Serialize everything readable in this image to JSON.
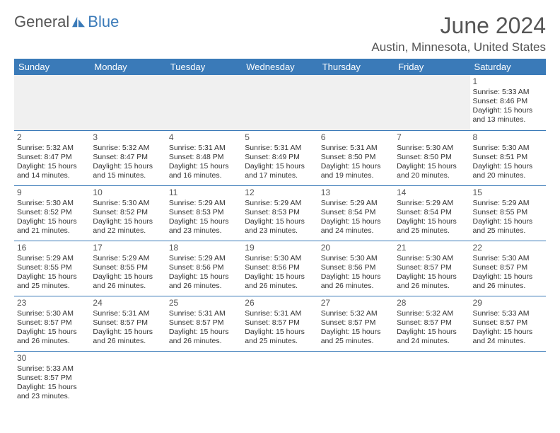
{
  "logo": {
    "text1": "General",
    "text2": "Blue",
    "icon_color": "#3a7ab8"
  },
  "title": {
    "month_year": "June 2024",
    "location": "Austin, Minnesota, United States"
  },
  "colors": {
    "header_bg": "#3a7ab8",
    "header_fg": "#ffffff",
    "rule": "#3a7ab8",
    "text": "#333333",
    "muted": "#555555",
    "empty_bg": "#f0f0f0"
  },
  "day_headers": [
    "Sunday",
    "Monday",
    "Tuesday",
    "Wednesday",
    "Thursday",
    "Friday",
    "Saturday"
  ],
  "weeks": [
    [
      null,
      null,
      null,
      null,
      null,
      null,
      {
        "n": "1",
        "sunrise": "5:33 AM",
        "sunset": "8:46 PM",
        "dl_h": "15",
        "dl_m": "13"
      }
    ],
    [
      {
        "n": "2",
        "sunrise": "5:32 AM",
        "sunset": "8:47 PM",
        "dl_h": "15",
        "dl_m": "14"
      },
      {
        "n": "3",
        "sunrise": "5:32 AM",
        "sunset": "8:47 PM",
        "dl_h": "15",
        "dl_m": "15"
      },
      {
        "n": "4",
        "sunrise": "5:31 AM",
        "sunset": "8:48 PM",
        "dl_h": "15",
        "dl_m": "16"
      },
      {
        "n": "5",
        "sunrise": "5:31 AM",
        "sunset": "8:49 PM",
        "dl_h": "15",
        "dl_m": "17"
      },
      {
        "n": "6",
        "sunrise": "5:31 AM",
        "sunset": "8:50 PM",
        "dl_h": "15",
        "dl_m": "19"
      },
      {
        "n": "7",
        "sunrise": "5:30 AM",
        "sunset": "8:50 PM",
        "dl_h": "15",
        "dl_m": "20"
      },
      {
        "n": "8",
        "sunrise": "5:30 AM",
        "sunset": "8:51 PM",
        "dl_h": "15",
        "dl_m": "20"
      }
    ],
    [
      {
        "n": "9",
        "sunrise": "5:30 AM",
        "sunset": "8:52 PM",
        "dl_h": "15",
        "dl_m": "21"
      },
      {
        "n": "10",
        "sunrise": "5:30 AM",
        "sunset": "8:52 PM",
        "dl_h": "15",
        "dl_m": "22"
      },
      {
        "n": "11",
        "sunrise": "5:29 AM",
        "sunset": "8:53 PM",
        "dl_h": "15",
        "dl_m": "23"
      },
      {
        "n": "12",
        "sunrise": "5:29 AM",
        "sunset": "8:53 PM",
        "dl_h": "15",
        "dl_m": "23"
      },
      {
        "n": "13",
        "sunrise": "5:29 AM",
        "sunset": "8:54 PM",
        "dl_h": "15",
        "dl_m": "24"
      },
      {
        "n": "14",
        "sunrise": "5:29 AM",
        "sunset": "8:54 PM",
        "dl_h": "15",
        "dl_m": "25"
      },
      {
        "n": "15",
        "sunrise": "5:29 AM",
        "sunset": "8:55 PM",
        "dl_h": "15",
        "dl_m": "25"
      }
    ],
    [
      {
        "n": "16",
        "sunrise": "5:29 AM",
        "sunset": "8:55 PM",
        "dl_h": "15",
        "dl_m": "25"
      },
      {
        "n": "17",
        "sunrise": "5:29 AM",
        "sunset": "8:55 PM",
        "dl_h": "15",
        "dl_m": "26"
      },
      {
        "n": "18",
        "sunrise": "5:29 AM",
        "sunset": "8:56 PM",
        "dl_h": "15",
        "dl_m": "26"
      },
      {
        "n": "19",
        "sunrise": "5:30 AM",
        "sunset": "8:56 PM",
        "dl_h": "15",
        "dl_m": "26"
      },
      {
        "n": "20",
        "sunrise": "5:30 AM",
        "sunset": "8:56 PM",
        "dl_h": "15",
        "dl_m": "26"
      },
      {
        "n": "21",
        "sunrise": "5:30 AM",
        "sunset": "8:57 PM",
        "dl_h": "15",
        "dl_m": "26"
      },
      {
        "n": "22",
        "sunrise": "5:30 AM",
        "sunset": "8:57 PM",
        "dl_h": "15",
        "dl_m": "26"
      }
    ],
    [
      {
        "n": "23",
        "sunrise": "5:30 AM",
        "sunset": "8:57 PM",
        "dl_h": "15",
        "dl_m": "26"
      },
      {
        "n": "24",
        "sunrise": "5:31 AM",
        "sunset": "8:57 PM",
        "dl_h": "15",
        "dl_m": "26"
      },
      {
        "n": "25",
        "sunrise": "5:31 AM",
        "sunset": "8:57 PM",
        "dl_h": "15",
        "dl_m": "26"
      },
      {
        "n": "26",
        "sunrise": "5:31 AM",
        "sunset": "8:57 PM",
        "dl_h": "15",
        "dl_m": "25"
      },
      {
        "n": "27",
        "sunrise": "5:32 AM",
        "sunset": "8:57 PM",
        "dl_h": "15",
        "dl_m": "25"
      },
      {
        "n": "28",
        "sunrise": "5:32 AM",
        "sunset": "8:57 PM",
        "dl_h": "15",
        "dl_m": "24"
      },
      {
        "n": "29",
        "sunrise": "5:33 AM",
        "sunset": "8:57 PM",
        "dl_h": "15",
        "dl_m": "24"
      }
    ],
    [
      {
        "n": "30",
        "sunrise": "5:33 AM",
        "sunset": "8:57 PM",
        "dl_h": "15",
        "dl_m": "23"
      },
      null,
      null,
      null,
      null,
      null,
      null
    ]
  ],
  "labels": {
    "sunrise": "Sunrise:",
    "sunset": "Sunset:",
    "daylight": "Daylight:",
    "hours": "hours",
    "and": "and",
    "minutes": "minutes."
  }
}
